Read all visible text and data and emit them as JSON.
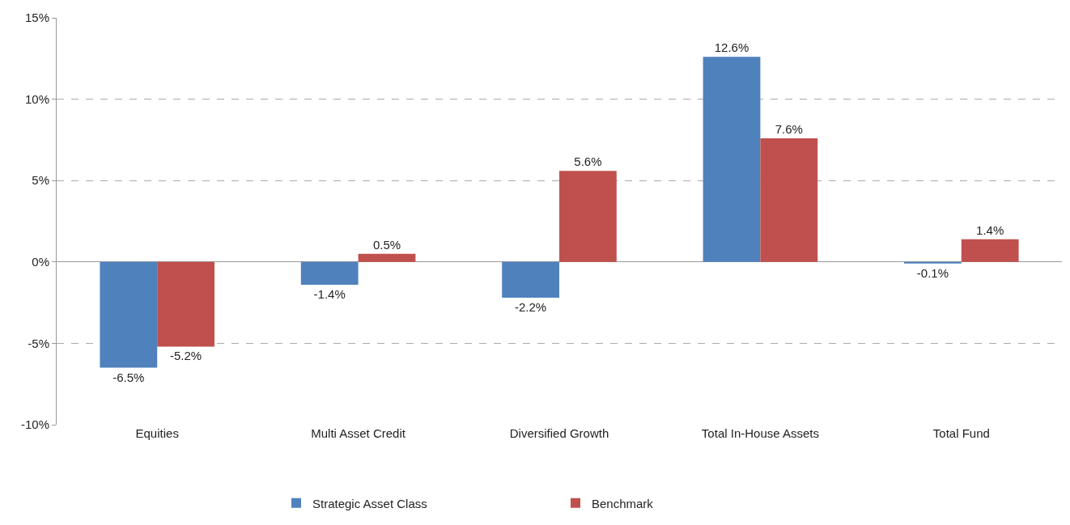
{
  "chart_data": {
    "type": "bar",
    "categories": [
      "Equities",
      "Multi Asset Credit",
      "Diversified Growth",
      "Total In-House Assets",
      "Total Fund"
    ],
    "series": [
      {
        "name": "Strategic Asset Class",
        "color": "#4f81bd",
        "values": [
          -6.5,
          -1.4,
          -2.2,
          12.6,
          -0.1
        ],
        "value_labels": [
          "-6.5%",
          "-1.4%",
          "-2.2%",
          "12.6%",
          "-0.1%"
        ]
      },
      {
        "name": "Benchmark",
        "color": "#c0504d",
        "values": [
          -5.2,
          0.5,
          5.6,
          7.6,
          1.4
        ],
        "value_labels": [
          "-5.2%",
          "0.5%",
          "5.6%",
          "7.6%",
          "1.4%"
        ]
      }
    ],
    "ylim": [
      -10,
      15
    ],
    "yticks": [
      {
        "value": -10,
        "label": "-10%"
      },
      {
        "value": -5,
        "label": "-5%"
      },
      {
        "value": 0,
        "label": "0%"
      },
      {
        "value": 5,
        "label": "5%"
      },
      {
        "value": 10,
        "label": "10%"
      },
      {
        "value": 15,
        "label": "15%"
      }
    ],
    "grid": "y",
    "legend": "bottom"
  }
}
